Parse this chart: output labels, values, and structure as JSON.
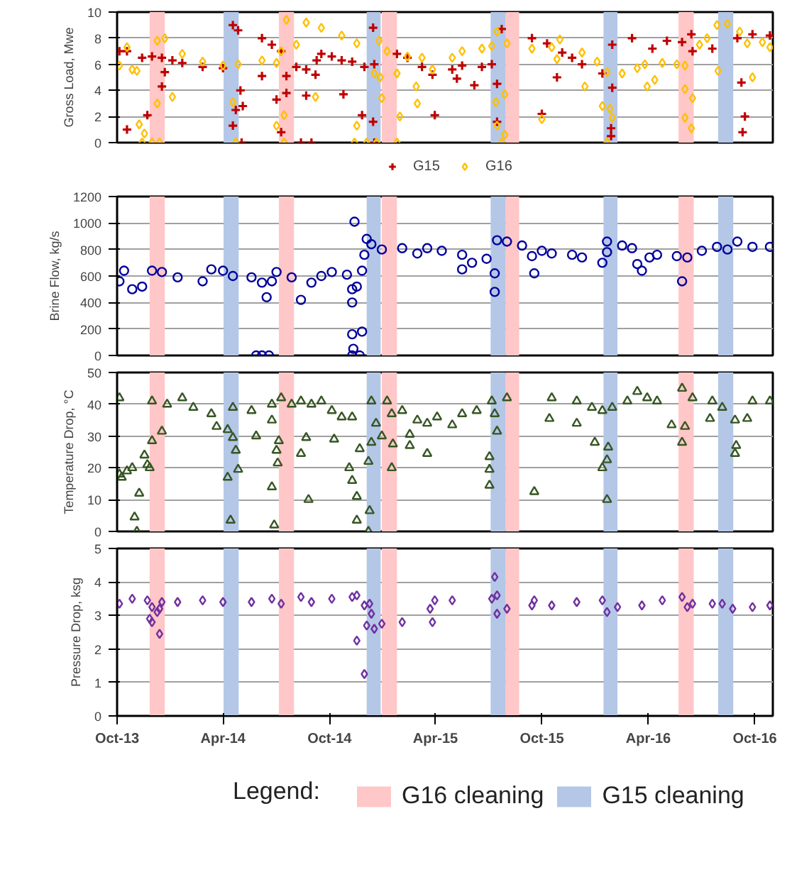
{
  "chart_data": [
    {
      "type": "scatter",
      "ylabel": "Gross Load, Mwe",
      "xlim": [
        "2013-10-01",
        "2016-11-01"
      ],
      "ylim": [
        0,
        10
      ],
      "yticks": [
        0,
        2,
        4,
        6,
        8,
        10
      ],
      "grid": "y",
      "tick_labels": "y",
      "legend": "bottom",
      "bands": [
        {
          "axis": "x",
          "from": "2013-11-26",
          "to": "2013-12-22",
          "color": "#ffc7c7"
        },
        {
          "axis": "x",
          "from": "2014-04-02",
          "to": "2014-04-28",
          "color": "#b4c7e7"
        },
        {
          "axis": "x",
          "from": "2014-07-06",
          "to": "2014-08-01",
          "color": "#ffc7c7"
        },
        {
          "axis": "x",
          "from": "2014-12-04",
          "to": "2014-12-28",
          "color": "#b4c7e7"
        },
        {
          "axis": "x",
          "from": "2014-12-30",
          "to": "2015-01-25",
          "color": "#ffc7c7"
        },
        {
          "axis": "x",
          "from": "2015-07-05",
          "to": "2015-07-31",
          "color": "#b4c7e7"
        },
        {
          "axis": "x",
          "from": "2015-07-31",
          "to": "2015-08-23",
          "color": "#ffc7c7"
        },
        {
          "axis": "x",
          "from": "2016-01-15",
          "to": "2016-02-08",
          "color": "#b4c7e7"
        },
        {
          "axis": "x",
          "from": "2016-05-23",
          "to": "2016-06-18",
          "color": "#ffc7c7"
        },
        {
          "axis": "x",
          "from": "2016-07-30",
          "to": "2016-08-25",
          "color": "#b4c7e7"
        }
      ],
      "series": [
        {
          "name": "G15",
          "color": "#c00000",
          "marker": "cross",
          "x": [
            "2013-10-05",
            "2013-10-18",
            "2013-11-13",
            "2013-11-30",
            "2013-12-17",
            "2014-01-04",
            "2014-01-21",
            "2014-02-25",
            "2014-04-01",
            "2014-04-18",
            "2014-04-27",
            "2014-06-07",
            "2014-06-24",
            "2014-07-10",
            "2014-08-05",
            "2014-08-22",
            "2014-09-09",
            "2014-09-17",
            "2014-10-05",
            "2014-10-22",
            "2014-11-09",
            "2014-11-30",
            "2014-12-15",
            "2014-12-17",
            "2015-01-25",
            "2015-02-12",
            "2015-03-09",
            "2015-03-27",
            "2015-04-30",
            "2015-05-17",
            "2015-06-20",
            "2015-07-07",
            "2015-07-24",
            "2015-09-14",
            "2015-10-10",
            "2015-11-05",
            "2015-11-22",
            "2015-12-09",
            "2016-01-13",
            "2016-01-30",
            "2016-03-04",
            "2016-04-08",
            "2016-05-03",
            "2016-05-29",
            "2016-06-16",
            "2016-07-20",
            "2016-09-01",
            "2016-09-27",
            "2016-10-27",
            "2013-11-22",
            "2013-10-18",
            "2014-08-13",
            "2014-08-31",
            "2013-12-17",
            "2013-12-22",
            "2014-04-18",
            "2014-04-23",
            "2014-05-01",
            "2014-05-05",
            "2014-05-03",
            "2014-06-07",
            "2014-07-02",
            "2014-07-10",
            "2014-07-19",
            "2014-07-19",
            "2014-08-22",
            "2014-09-07",
            "2014-10-25",
            "2014-11-26",
            "2014-12-15",
            "2014-12-17",
            "2015-03-31",
            "2015-05-08",
            "2015-06-07",
            "2015-07-16",
            "2015-07-16",
            "2015-10-01",
            "2015-10-27",
            "2016-01-28",
            "2016-01-28",
            "2016-01-30",
            "2016-06-14",
            "2016-09-08",
            "2016-09-14",
            "2016-09-10"
          ],
          "values": [
            7.0,
            7.0,
            6.5,
            6.6,
            6.5,
            6.3,
            6.1,
            5.8,
            5.7,
            9.0,
            8.6,
            8.0,
            7.5,
            7.0,
            5.8,
            5.6,
            6.3,
            6.8,
            6.6,
            6.3,
            6.2,
            5.8,
            8.8,
            6.0,
            6.8,
            6.5,
            5.8,
            5.2,
            5.6,
            5.9,
            5.8,
            6.0,
            8.7,
            8.0,
            7.6,
            6.9,
            6.5,
            6.0,
            5.3,
            7.5,
            8.0,
            7.2,
            7.8,
            7.7,
            7.0,
            7.2,
            8.0,
            8.3,
            8.2,
            2.1,
            1.0,
            0,
            0,
            4.3,
            5.4,
            1.3,
            2.5,
            4.0,
            2.8,
            0,
            5.1,
            3.3,
            0.8,
            5.1,
            3.8,
            3.6,
            5.2,
            3.7,
            2.1,
            1.6,
            0,
            2.1,
            4.9,
            4.4,
            4.5,
            1.6,
            2.2,
            5.0,
            1.1,
            0.5,
            4.2,
            8.3,
            4.6,
            2.0,
            0.8
          ]
        },
        {
          "name": "G16",
          "color": "#ffc000",
          "marker": "diamond",
          "x": [
            "2013-10-05",
            "2013-10-27",
            "2013-11-04",
            "2013-12-09",
            "2013-12-22",
            "2014-01-21",
            "2014-02-25",
            "2014-04-01",
            "2014-04-27",
            "2014-06-07",
            "2014-07-02",
            "2014-07-10",
            "2014-07-19",
            "2014-08-22",
            "2014-09-17",
            "2014-10-22",
            "2014-11-17",
            "2014-12-25",
            "2015-01-08",
            "2015-02-12",
            "2015-03-09",
            "2015-03-27",
            "2015-04-30",
            "2015-05-17",
            "2015-06-20",
            "2015-07-07",
            "2015-07-16",
            "2015-08-02",
            "2015-09-14",
            "2015-10-18",
            "2015-11-01",
            "2015-12-09",
            "2016-01-04",
            "2016-01-21",
            "2016-02-16",
            "2016-03-13",
            "2016-03-26",
            "2016-03-30",
            "2016-04-12",
            "2016-04-25",
            "2016-05-20",
            "2016-06-03",
            "2016-06-28",
            "2016-07-11",
            "2016-07-28",
            "2016-08-15",
            "2016-09-05",
            "2016-09-18",
            "2016-10-14",
            "2016-10-27",
            "2013-10-18",
            "2013-11-08",
            "2013-11-17",
            "2013-11-13",
            "2013-11-30",
            "2013-12-13",
            "2013-12-09",
            "2014-01-04",
            "2014-04-18",
            "2014-04-23",
            "2014-07-02",
            "2014-07-15",
            "2014-07-15",
            "2014-08-05",
            "2014-09-07",
            "2014-11-17",
            "2014-11-13",
            "2014-12-04",
            "2014-12-21",
            "2014-12-17",
            "2014-12-27",
            "2014-12-30",
            "2015-01-25",
            "2015-01-30",
            "2015-01-25",
            "2015-02-27",
            "2015-03-01",
            "2015-07-14",
            "2015-07-16",
            "2015-07-24",
            "2015-07-29",
            "2015-07-29",
            "2015-10-27",
            "2015-12-14",
            "2015-10-01",
            "2016-01-13",
            "2016-01-26",
            "2016-01-30",
            "2016-01-21",
            "2016-06-03",
            "2016-06-03",
            "2016-06-14",
            "2016-06-16",
            "2016-09-27",
            "2016-07-30"
          ],
          "values": [
            5.9,
            5.6,
            5.5,
            7.8,
            8.0,
            6.8,
            6.2,
            5.9,
            6.0,
            6.3,
            6.1,
            7.0,
            9.4,
            9.2,
            8.8,
            8.2,
            7.6,
            7.8,
            7.0,
            6.6,
            6.5,
            5.6,
            6.5,
            7.0,
            7.2,
            7.4,
            8.5,
            7.6,
            7.2,
            7.3,
            7.9,
            6.9,
            6.2,
            5.4,
            5.3,
            5.7,
            6.0,
            4.3,
            4.8,
            6.1,
            6.0,
            5.9,
            7.5,
            8.0,
            9.0,
            9.1,
            8.5,
            7.6,
            7.7,
            7.3,
            7.3,
            1.4,
            0.7,
            0,
            0,
            0,
            3.0,
            3.5,
            3.1,
            0,
            1.3,
            2.1,
            0,
            7.5,
            3.5,
            1.3,
            0,
            0,
            0,
            5.3,
            5.0,
            3.4,
            5.3,
            2.0,
            0,
            4.3,
            3.0,
            3.1,
            1.3,
            0,
            3.7,
            0.6,
            6.4,
            4.3,
            1.8,
            2.8,
            2.6,
            1.9,
            0,
            4.1,
            1.9,
            1.1,
            3.4,
            5.0,
            5.5
          ]
        }
      ]
    },
    {
      "type": "scatter",
      "ylabel": "Brine Flow, kg/s",
      "xlim": [
        "2013-10-01",
        "2016-11-01"
      ],
      "ylim": [
        0,
        1200
      ],
      "yticks": [
        0,
        200,
        400,
        600,
        800,
        1000,
        1200
      ],
      "grid": "y",
      "tick_labels": "y",
      "bands": [
        {
          "axis": "x",
          "from": "2013-11-26",
          "to": "2013-12-22",
          "color": "#ffc7c7"
        },
        {
          "axis": "x",
          "from": "2014-04-02",
          "to": "2014-04-28",
          "color": "#b4c7e7"
        },
        {
          "axis": "x",
          "from": "2014-07-06",
          "to": "2014-08-01",
          "color": "#ffc7c7"
        },
        {
          "axis": "x",
          "from": "2014-12-04",
          "to": "2014-12-28",
          "color": "#b4c7e7"
        },
        {
          "axis": "x",
          "from": "2014-12-30",
          "to": "2015-01-25",
          "color": "#ffc7c7"
        },
        {
          "axis": "x",
          "from": "2015-07-05",
          "to": "2015-07-31",
          "color": "#b4c7e7"
        },
        {
          "axis": "x",
          "from": "2015-07-31",
          "to": "2015-08-23",
          "color": "#ffc7c7"
        },
        {
          "axis": "x",
          "from": "2016-01-15",
          "to": "2016-02-08",
          "color": "#b4c7e7"
        },
        {
          "axis": "x",
          "from": "2016-05-23",
          "to": "2016-06-18",
          "color": "#ffc7c7"
        },
        {
          "axis": "x",
          "from": "2016-07-30",
          "to": "2016-08-25",
          "color": "#b4c7e7"
        }
      ],
      "series": [
        {
          "color": "#00009c",
          "marker": "circle",
          "x": [
            "2013-10-05",
            "2013-10-13",
            "2013-10-27",
            "2013-11-13",
            "2013-11-30",
            "2013-12-17",
            "2014-01-13",
            "2014-02-25",
            "2014-03-12",
            "2014-04-01",
            "2014-04-18",
            "2014-05-20",
            "2014-06-07",
            "2014-06-24",
            "2014-07-02",
            "2014-07-28",
            "2014-08-13",
            "2014-08-31",
            "2014-09-17",
            "2014-10-05",
            "2014-10-31",
            "2014-11-09",
            "2014-11-17",
            "2014-11-30",
            "2014-12-04",
            "2014-12-12",
            "2014-12-30",
            "2015-02-03",
            "2015-03-01",
            "2015-03-18",
            "2015-04-12",
            "2015-05-17",
            "2015-06-03",
            "2015-06-28",
            "2015-07-16",
            "2015-08-02",
            "2015-08-28",
            "2015-10-01",
            "2015-10-18",
            "2015-11-22",
            "2015-12-09",
            "2016-01-13",
            "2016-01-21",
            "2016-02-16",
            "2016-03-04",
            "2016-03-13",
            "2016-03-21",
            "2016-04-03",
            "2016-04-16",
            "2016-05-20",
            "2016-05-29",
            "2016-06-07",
            "2016-07-02",
            "2016-07-28",
            "2016-08-15",
            "2016-09-01",
            "2016-09-27",
            "2016-10-27",
            "2014-05-28",
            "2014-06-07",
            "2014-06-19",
            "2014-06-15",
            "2014-11-09",
            "2014-11-22",
            "2014-11-13",
            "2014-11-09",
            "2014-11-09",
            "2014-11-11",
            "2014-11-26",
            "2014-11-26",
            "2015-05-17",
            "2015-07-12",
            "2015-07-12",
            "2015-09-18",
            "2015-09-14",
            "2016-01-21"
          ],
          "values": [
            560,
            640,
            500,
            520,
            640,
            630,
            590,
            560,
            650,
            640,
            600,
            590,
            550,
            560,
            630,
            590,
            420,
            550,
            600,
            630,
            610,
            500,
            520,
            760,
            880,
            840,
            800,
            810,
            770,
            810,
            790,
            760,
            700,
            730,
            870,
            860,
            830,
            790,
            770,
            760,
            740,
            700,
            860,
            830,
            810,
            690,
            640,
            740,
            760,
            750,
            560,
            740,
            790,
            820,
            800,
            860,
            820,
            820,
            0,
            0,
            0,
            440,
            0,
            0,
            1010,
            400,
            160,
            50,
            180,
            640,
            650,
            480,
            620,
            620,
            750,
            780
          ]
        }
      ]
    },
    {
      "type": "scatter",
      "ylabel": "Temperature Drop, °C",
      "xlim": [
        "2013-10-01",
        "2016-11-01"
      ],
      "ylim": [
        0,
        50
      ],
      "yticks": [
        0,
        10,
        20,
        30,
        40,
        50
      ],
      "grid": "y",
      "tick_labels": "y",
      "bands": [
        {
          "axis": "x",
          "from": "2013-11-26",
          "to": "2013-12-22",
          "color": "#ffc7c7"
        },
        {
          "axis": "x",
          "from": "2014-04-02",
          "to": "2014-04-28",
          "color": "#b4c7e7"
        },
        {
          "axis": "x",
          "from": "2014-07-06",
          "to": "2014-08-01",
          "color": "#ffc7c7"
        },
        {
          "axis": "x",
          "from": "2014-12-04",
          "to": "2014-12-28",
          "color": "#b4c7e7"
        },
        {
          "axis": "x",
          "from": "2014-12-30",
          "to": "2015-01-25",
          "color": "#ffc7c7"
        },
        {
          "axis": "x",
          "from": "2015-07-05",
          "to": "2015-07-31",
          "color": "#b4c7e7"
        },
        {
          "axis": "x",
          "from": "2015-07-31",
          "to": "2015-08-23",
          "color": "#ffc7c7"
        },
        {
          "axis": "x",
          "from": "2016-01-15",
          "to": "2016-02-08",
          "color": "#b4c7e7"
        },
        {
          "axis": "x",
          "from": "2016-05-23",
          "to": "2016-06-18",
          "color": "#ffc7c7"
        },
        {
          "axis": "x",
          "from": "2016-07-30",
          "to": "2016-08-25",
          "color": "#b4c7e7"
        }
      ],
      "series": [
        {
          "color": "#375623",
          "marker": "triangle",
          "x": [
            "2013-10-05",
            "2013-10-09",
            "2013-10-18",
            "2013-10-27",
            "2013-11-17",
            "2013-11-22",
            "2013-11-26",
            "2013-11-30",
            "2013-12-26",
            "2014-01-21",
            "2014-02-09",
            "2014-03-12",
            "2014-03-21",
            "2014-04-09",
            "2014-04-18",
            "2014-05-20",
            "2014-06-24",
            "2014-07-10",
            "2014-07-28",
            "2014-08-13",
            "2014-08-31",
            "2014-09-17",
            "2014-10-05",
            "2014-10-22",
            "2014-11-09",
            "2014-12-12",
            "2015-01-08",
            "2015-02-03",
            "2015-03-01",
            "2015-03-18",
            "2015-04-04",
            "2015-05-17",
            "2015-06-11",
            "2015-07-07",
            "2015-08-02",
            "2015-10-18",
            "2015-11-30",
            "2015-12-26",
            "2016-01-13",
            "2016-01-30",
            "2016-02-25",
            "2016-03-13",
            "2016-03-30",
            "2016-04-16",
            "2016-05-29",
            "2016-06-16",
            "2016-07-20",
            "2016-09-27",
            "2016-10-27",
            "2013-10-05",
            "2013-11-04",
            "2013-10-31",
            "2013-11-08",
            "2013-11-30",
            "2013-12-17",
            "2014-04-09",
            "2014-04-14",
            "2014-04-18",
            "2014-04-23",
            "2014-04-27",
            "2014-05-28",
            "2014-06-24",
            "2014-06-28",
            "2014-07-02",
            "2014-07-06",
            "2014-07-04",
            "2014-06-24",
            "2014-08-13",
            "2014-08-22",
            "2014-08-26",
            "2014-10-09",
            "2014-11-04",
            "2014-11-09",
            "2014-11-17",
            "2014-11-17",
            "2014-11-22",
            "2014-12-07",
            "2014-12-07",
            "2014-12-09",
            "2014-12-12",
            "2014-12-20",
            "2014-12-30",
            "2015-01-16",
            "2015-01-18",
            "2015-01-16",
            "2015-02-16",
            "2015-02-16",
            "2015-03-18",
            "2015-04-30",
            "2015-07-03",
            "2015-07-03",
            "2015-07-03",
            "2015-07-16",
            "2015-07-12",
            "2015-09-18",
            "2015-10-14",
            "2015-11-30",
            "2015-12-31",
            "2016-01-13",
            "2016-01-21",
            "2016-01-21",
            "2016-01-23",
            "2016-05-11",
            "2016-05-29",
            "2016-06-03",
            "2016-07-16",
            "2016-08-06",
            "2016-08-28",
            "2016-08-28",
            "2016-08-30",
            "2016-09-18"
          ],
          "values": [
            42,
            17,
            19,
            20,
            24,
            21,
            20,
            41,
            40,
            42,
            39,
            37,
            33,
            32,
            39,
            38,
            40,
            42,
            40,
            41,
            40,
            41,
            38,
            36,
            36,
            41,
            41,
            38,
            35,
            34,
            36,
            37,
            38,
            41,
            42,
            42,
            41,
            39,
            38,
            39,
            41,
            44,
            42,
            41,
            45,
            42,
            41,
            41,
            41,
            18,
            0,
            4.5,
            12,
            28.5,
            31.5,
            17,
            3.5,
            29.5,
            25.5,
            19.5,
            30,
            14,
            2,
            25.5,
            28.5,
            21.5,
            35,
            24.5,
            29.5,
            10,
            29,
            20,
            16,
            11,
            3.5,
            26,
            22,
            0,
            6.5,
            28,
            34,
            30,
            20,
            27.5,
            37,
            27,
            30.5,
            24.5,
            33.5,
            14.5,
            19.5,
            23.5,
            31.5,
            37,
            12.5,
            35.5,
            34,
            28,
            20,
            10,
            22.5,
            26.5,
            33.5,
            28,
            33,
            35.5,
            39,
            24.5,
            35,
            27,
            35.5
          ]
        }
      ]
    },
    {
      "type": "scatter",
      "ylabel": "Pressure Drop, ksg",
      "xlim": [
        "2013-10-01",
        "2016-11-01"
      ],
      "ylim": [
        0,
        5
      ],
      "yticks": [
        0,
        1,
        2,
        3,
        4,
        5
      ],
      "xticks": [
        {
          "value": "2013-10-01",
          "label": "Oct-13"
        },
        {
          "value": "2014-04-01",
          "label": "Apr-14"
        },
        {
          "value": "2014-10-01",
          "label": "Oct-14"
        },
        {
          "value": "2015-04-01",
          "label": "Apr-15"
        },
        {
          "value": "2015-10-01",
          "label": "Oct-15"
        },
        {
          "value": "2016-04-01",
          "label": "Apr-16"
        },
        {
          "value": "2016-10-01",
          "label": "Oct-16"
        }
      ],
      "grid": "y",
      "legend": "bottom",
      "legend_title": "Legend:",
      "bands": [
        {
          "axis": "x",
          "from": "2013-11-26",
          "to": "2013-12-22",
          "color": "#ffc7c7",
          "label": "G16 cleaning"
        },
        {
          "axis": "x",
          "from": "2014-04-02",
          "to": "2014-04-28",
          "color": "#b4c7e7",
          "label": "G15 cleaning"
        },
        {
          "axis": "x",
          "from": "2014-07-06",
          "to": "2014-08-01",
          "color": "#ffc7c7"
        },
        {
          "axis": "x",
          "from": "2014-12-04",
          "to": "2014-12-28",
          "color": "#b4c7e7"
        },
        {
          "axis": "x",
          "from": "2014-12-30",
          "to": "2015-01-25",
          "color": "#ffc7c7"
        },
        {
          "axis": "x",
          "from": "2015-07-05",
          "to": "2015-07-31",
          "color": "#b4c7e7"
        },
        {
          "axis": "x",
          "from": "2015-07-31",
          "to": "2015-08-23",
          "color": "#ffc7c7"
        },
        {
          "axis": "x",
          "from": "2016-01-15",
          "to": "2016-02-08",
          "color": "#b4c7e7"
        },
        {
          "axis": "x",
          "from": "2016-05-23",
          "to": "2016-06-18",
          "color": "#ffc7c7"
        },
        {
          "axis": "x",
          "from": "2016-07-30",
          "to": "2016-08-25",
          "color": "#b4c7e7"
        }
      ],
      "series": [
        {
          "color": "#7030a0",
          "marker": "diamond",
          "x": [
            "2013-10-05",
            "2013-10-27",
            "2013-11-22",
            "2013-11-30",
            "2013-12-09",
            "2013-12-17",
            "2014-01-13",
            "2014-02-25",
            "2014-04-01",
            "2014-05-20",
            "2014-06-24",
            "2014-07-10",
            "2014-08-13",
            "2014-08-31",
            "2014-10-05",
            "2014-11-09",
            "2014-11-17",
            "2014-11-30",
            "2014-12-04",
            "2014-12-17",
            "2014-12-30",
            "2015-02-03",
            "2015-03-27",
            "2015-03-31",
            "2015-04-30",
            "2015-07-07",
            "2015-07-16",
            "2015-08-02",
            "2015-09-14",
            "2015-10-18",
            "2015-11-30",
            "2016-01-13",
            "2016-01-21",
            "2016-02-08",
            "2016-03-21",
            "2016-04-25",
            "2016-05-29",
            "2016-06-16",
            "2016-07-20",
            "2016-08-06",
            "2016-08-24",
            "2016-09-27",
            "2016-10-27",
            "2013-11-26",
            "2013-11-30",
            "2013-12-13",
            "2013-12-13",
            "2014-11-17",
            "2014-11-30",
            "2014-12-09",
            "2014-12-12",
            "2015-07-12",
            "2015-07-16",
            "2015-09-18",
            "2015-03-23",
            "2016-06-07"
          ],
          "values": [
            3.35,
            3.5,
            3.45,
            3.25,
            3.1,
            3.4,
            3.4,
            3.45,
            3.4,
            3.4,
            3.5,
            3.35,
            3.55,
            3.4,
            3.5,
            3.55,
            3.6,
            3.3,
            2.7,
            2.6,
            2.75,
            2.8,
            2.8,
            3.45,
            3.45,
            3.5,
            3.05,
            3.2,
            3.3,
            3.3,
            3.4,
            3.45,
            3.1,
            3.25,
            3.3,
            3.45,
            3.55,
            3.35,
            3.35,
            3.35,
            3.2,
            3.25,
            3.3,
            2.9,
            2.8,
            2.45,
            3.2,
            2.25,
            1.25,
            3.35,
            3.05,
            4.15,
            3.6,
            3.45,
            3.2,
            3.25
          ]
        }
      ]
    }
  ]
}
